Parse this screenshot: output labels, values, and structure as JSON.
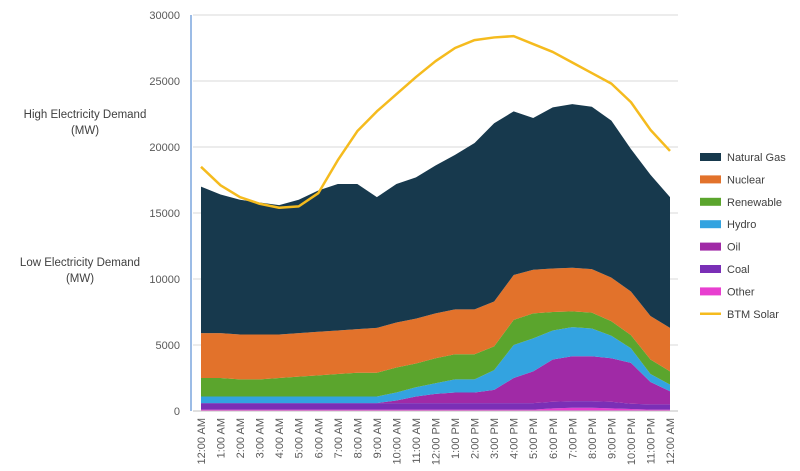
{
  "side_labels": {
    "high": [
      "High Electricity Demand",
      "(MW)"
    ],
    "low": [
      "Low Electricity Demand",
      "(MW)"
    ]
  },
  "chart_data": {
    "type": "area",
    "stacked": true,
    "title": "",
    "ylim": [
      0,
      30000
    ],
    "yticks": [
      0,
      5000,
      10000,
      15000,
      20000,
      25000,
      30000
    ],
    "grid": true,
    "legend_position": "right",
    "categories": [
      "12:00 AM",
      "1:00 AM",
      "2:00 AM",
      "3:00 AM",
      "4:00 AM",
      "5:00 AM",
      "6:00 AM",
      "7:00 AM",
      "8:00 AM",
      "9:00 AM",
      "10:00 AM",
      "11:00 AM",
      "12:00 PM",
      "1:00 PM",
      "2:00 PM",
      "3:00 PM",
      "4:00 PM",
      "5:00 PM",
      "6:00 PM",
      "7:00 PM",
      "8:00 PM",
      "9:00 PM",
      "10:00 PM",
      "11:00 PM",
      "12:00 AM"
    ],
    "series": [
      {
        "name": "Other",
        "color": "#e83fd0",
        "values": [
          100,
          100,
          100,
          100,
          100,
          100,
          100,
          100,
          100,
          100,
          100,
          100,
          100,
          100,
          100,
          100,
          100,
          100,
          200,
          250,
          250,
          200,
          150,
          100,
          100
        ]
      },
      {
        "name": "Coal",
        "color": "#7a2fb6",
        "values": [
          500,
          500,
          500,
          500,
          500,
          500,
          500,
          500,
          500,
          500,
          500,
          500,
          500,
          500,
          500,
          500,
          500,
          500,
          500,
          500,
          500,
          500,
          400,
          400,
          400
        ]
      },
      {
        "name": "Oil",
        "color": "#a02aa6",
        "values": [
          0,
          0,
          0,
          0,
          0,
          0,
          0,
          0,
          0,
          0,
          200,
          500,
          700,
          800,
          800,
          1000,
          1900,
          2400,
          3200,
          3400,
          3400,
          3300,
          3100,
          1700,
          1000
        ]
      },
      {
        "name": "Hydro",
        "color": "#33a3e0",
        "values": [
          500,
          500,
          500,
          500,
          500,
          500,
          500,
          500,
          500,
          500,
          600,
          700,
          800,
          1000,
          1000,
          1500,
          2500,
          2500,
          2200,
          2200,
          2100,
          1700,
          1100,
          600,
          500
        ]
      },
      {
        "name": "Renewable",
        "color": "#5ba52d",
        "values": [
          1400,
          1400,
          1300,
          1300,
          1400,
          1500,
          1600,
          1700,
          1800,
          1800,
          1900,
          1800,
          1900,
          1900,
          1900,
          1800,
          1900,
          1900,
          1400,
          1200,
          1200,
          1100,
          1000,
          1100,
          1000
        ]
      },
      {
        "name": "Nuclear",
        "color": "#e2722b",
        "values": [
          3400,
          3400,
          3400,
          3400,
          3300,
          3300,
          3300,
          3300,
          3300,
          3400,
          3400,
          3400,
          3400,
          3400,
          3400,
          3400,
          3400,
          3300,
          3300,
          3300,
          3300,
          3300,
          3300,
          3300,
          3300
        ]
      },
      {
        "name": "Natural Gas",
        "color": "#17394d",
        "values": [
          11100,
          10500,
          10200,
          10000,
          9800,
          10100,
          10700,
          11100,
          11000,
          9900,
          10500,
          10700,
          11200,
          11700,
          12600,
          13500,
          12400,
          11500,
          12200,
          12400,
          12300,
          11900,
          10800,
          10700,
          9900
        ]
      }
    ],
    "line": {
      "name": "BTM Solar",
      "color": "#f5bb1e",
      "values": [
        18500,
        17100,
        16200,
        15700,
        15400,
        15500,
        16500,
        19000,
        21200,
        22700,
        24000,
        25300,
        26500,
        27500,
        28100,
        28300,
        28400,
        27800,
        27200,
        26400,
        25600,
        24800,
        23400,
        21300,
        19700
      ]
    },
    "legend": [
      "Natural Gas",
      "Nuclear",
      "Renewable",
      "Hydro",
      "Oil",
      "Coal",
      "Other",
      "BTM Solar"
    ]
  }
}
